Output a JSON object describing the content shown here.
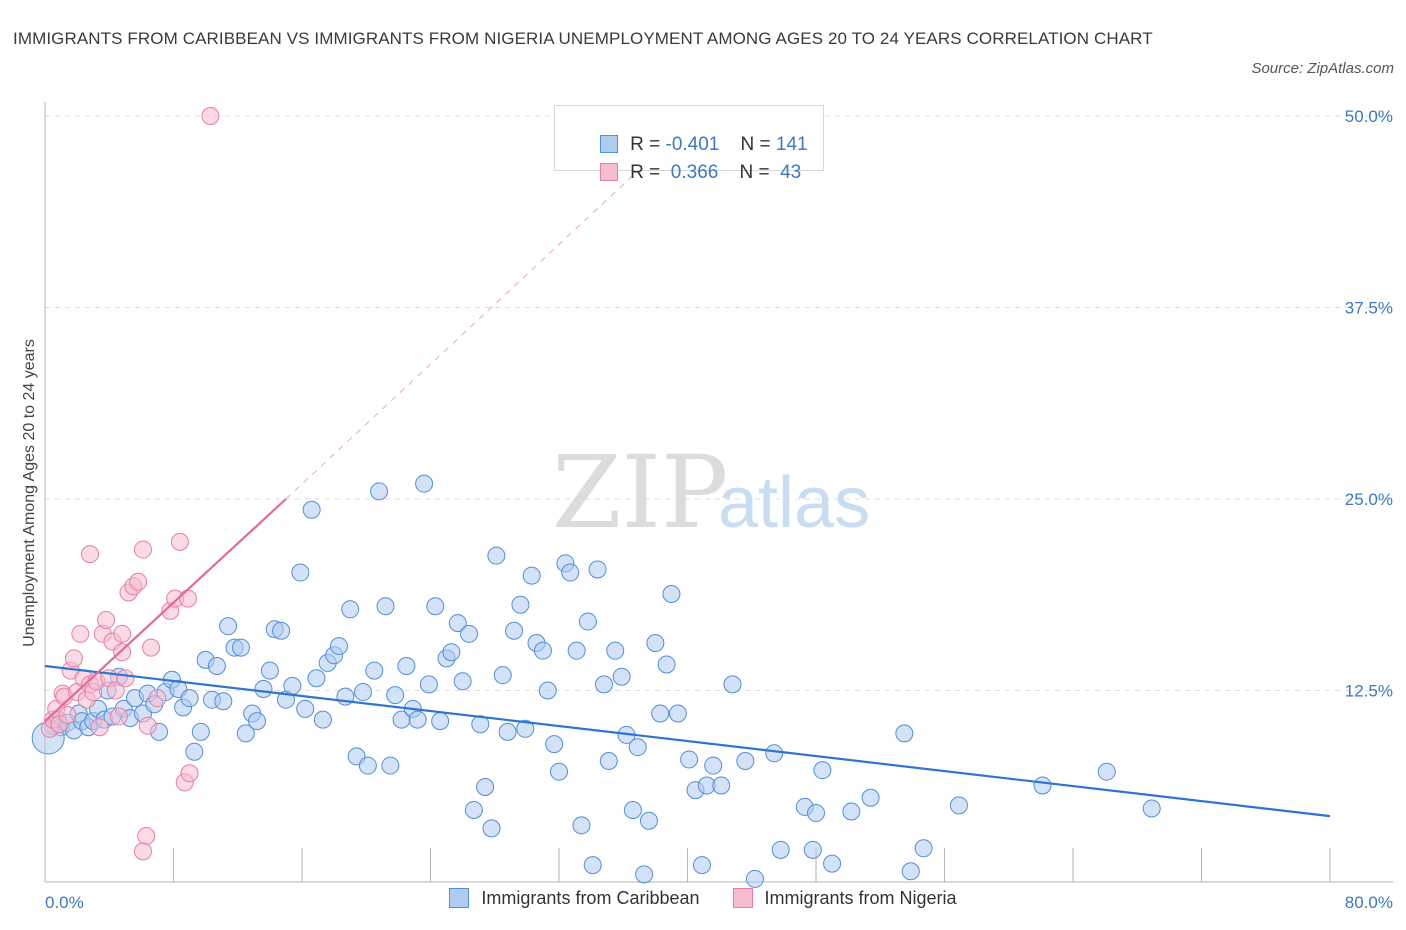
{
  "title": "IMMIGRANTS FROM CARIBBEAN VS IMMIGRANTS FROM NIGERIA UNEMPLOYMENT AMONG AGES 20 TO 24 YEARS CORRELATION CHART",
  "source": "Source: ZipAtlas.com",
  "watermark": {
    "zip": "ZIP",
    "atlas": "atlas"
  },
  "legend": {
    "rows": [
      {
        "r_label": "R = ",
        "r_value": "-0.401",
        "n_label": "N = ",
        "n_value": "141"
      },
      {
        "r_label": "R = ",
        "r_value": " 0.366",
        "n_label": "N = ",
        "n_value": " 43"
      }
    ]
  },
  "colors": {
    "caribbean_fill": "#aecbf0",
    "caribbean_stroke": "#4f8fdc",
    "caribbean_line": "#2f74d0",
    "nigeria_fill": "#f6bcd0",
    "nigeria_stroke": "#e77fa2",
    "nigeria_line": "#e46a92",
    "tick_label": "#3a78c8",
    "grid": "#dddddd"
  },
  "chart_data": {
    "type": "scatter",
    "title": "IMMIGRANTS FROM CARIBBEAN VS IMMIGRANTS FROM NIGERIA UNEMPLOYMENT AMONG AGES 20 TO 24 YEARS CORRELATION CHART",
    "xlabel": "",
    "ylabel": "Unemployment Among Ages 20 to 24 years",
    "xlim": [
      0,
      80
    ],
    "ylim": [
      0,
      50
    ],
    "x_tick_labels": [
      "0.0%",
      "80.0%"
    ],
    "y_ticks": [
      12.5,
      25.0,
      37.5,
      50.0
    ],
    "y_tick_labels": [
      "12.5%",
      "25.0%",
      "37.5%",
      "50.0%"
    ],
    "grid": true,
    "legend_position": "top-center",
    "series": [
      {
        "name": "Immigrants from Caribbean",
        "R": -0.401,
        "N": 141,
        "trend": {
          "x0": 0,
          "y0": 14.1,
          "x1": 80,
          "y1": 4.3
        },
        "points": [
          [
            0.5,
            10.2
          ],
          [
            0.8,
            10.6
          ],
          [
            1.0,
            10.1
          ],
          [
            1.4,
            10.4
          ],
          [
            1.8,
            9.9
          ],
          [
            2.1,
            11.0
          ],
          [
            2.3,
            10.5
          ],
          [
            2.7,
            10.1
          ],
          [
            3.0,
            10.5
          ],
          [
            3.3,
            11.3
          ],
          [
            3.7,
            10.6
          ],
          [
            3.9,
            12.5
          ],
          [
            4.2,
            10.8
          ],
          [
            4.6,
            13.4
          ],
          [
            4.9,
            11.3
          ],
          [
            5.3,
            10.7
          ],
          [
            5.6,
            12.0
          ],
          [
            6.1,
            11.0
          ],
          [
            6.4,
            12.3
          ],
          [
            6.8,
            11.6
          ],
          [
            7.1,
            9.8
          ],
          [
            7.5,
            12.4
          ],
          [
            7.9,
            13.2
          ],
          [
            8.3,
            12.6
          ],
          [
            8.6,
            11.4
          ],
          [
            9.0,
            12.0
          ],
          [
            9.3,
            8.5
          ],
          [
            9.7,
            9.8
          ],
          [
            10.0,
            14.5
          ],
          [
            10.4,
            11.9
          ],
          [
            10.7,
            14.1
          ],
          [
            11.1,
            11.8
          ],
          [
            11.4,
            16.7
          ],
          [
            11.8,
            15.3
          ],
          [
            12.2,
            15.3
          ],
          [
            12.5,
            9.7
          ],
          [
            12.9,
            11.0
          ],
          [
            13.2,
            10.5
          ],
          [
            13.6,
            12.6
          ],
          [
            14.0,
            13.8
          ],
          [
            14.3,
            16.5
          ],
          [
            14.7,
            16.4
          ],
          [
            15.0,
            11.9
          ],
          [
            15.4,
            12.8
          ],
          [
            15.9,
            20.2
          ],
          [
            16.2,
            11.3
          ],
          [
            16.6,
            24.3
          ],
          [
            16.9,
            13.3
          ],
          [
            17.3,
            10.6
          ],
          [
            17.6,
            14.3
          ],
          [
            18.0,
            14.8
          ],
          [
            18.3,
            15.4
          ],
          [
            18.7,
            12.1
          ],
          [
            19.0,
            17.8
          ],
          [
            19.4,
            8.2
          ],
          [
            19.8,
            12.4
          ],
          [
            20.1,
            7.6
          ],
          [
            20.5,
            13.8
          ],
          [
            20.8,
            25.5
          ],
          [
            21.2,
            18.0
          ],
          [
            21.5,
            7.6
          ],
          [
            21.8,
            12.2
          ],
          [
            22.2,
            10.6
          ],
          [
            22.5,
            14.1
          ],
          [
            22.9,
            11.3
          ],
          [
            23.2,
            10.6
          ],
          [
            23.6,
            26.0
          ],
          [
            23.9,
            12.9
          ],
          [
            24.3,
            18.0
          ],
          [
            24.6,
            10.5
          ],
          [
            25.0,
            14.6
          ],
          [
            25.3,
            15.0
          ],
          [
            25.7,
            16.9
          ],
          [
            26.0,
            13.1
          ],
          [
            26.4,
            16.2
          ],
          [
            26.7,
            4.7
          ],
          [
            27.1,
            10.3
          ],
          [
            27.4,
            6.2
          ],
          [
            27.8,
            3.5
          ],
          [
            28.1,
            21.3
          ],
          [
            28.5,
            13.5
          ],
          [
            28.8,
            9.8
          ],
          [
            29.2,
            16.4
          ],
          [
            29.6,
            18.1
          ],
          [
            29.9,
            10.0
          ],
          [
            30.3,
            20.0
          ],
          [
            30.6,
            15.6
          ],
          [
            31.0,
            15.1
          ],
          [
            31.3,
            12.5
          ],
          [
            31.7,
            9.0
          ],
          [
            32.0,
            7.2
          ],
          [
            32.4,
            20.8
          ],
          [
            32.7,
            20.2
          ],
          [
            33.1,
            15.1
          ],
          [
            33.4,
            3.7
          ],
          [
            33.8,
            17.0
          ],
          [
            34.1,
            1.1
          ],
          [
            34.4,
            20.4
          ],
          [
            34.8,
            12.9
          ],
          [
            35.1,
            7.9
          ],
          [
            35.5,
            15.1
          ],
          [
            35.9,
            13.4
          ],
          [
            36.2,
            9.6
          ],
          [
            36.6,
            4.7
          ],
          [
            36.9,
            8.8
          ],
          [
            37.3,
            0.5
          ],
          [
            37.6,
            4.0
          ],
          [
            38.0,
            15.6
          ],
          [
            38.3,
            11.0
          ],
          [
            38.7,
            14.2
          ],
          [
            39.0,
            18.8
          ],
          [
            39.4,
            11.0
          ],
          [
            40.1,
            8.0
          ],
          [
            40.5,
            6.0
          ],
          [
            40.9,
            1.1
          ],
          [
            41.2,
            6.3
          ],
          [
            41.6,
            7.6
          ],
          [
            42.1,
            6.3
          ],
          [
            42.8,
            12.9
          ],
          [
            43.6,
            7.9
          ],
          [
            44.2,
            0.2
          ],
          [
            45.4,
            8.4
          ],
          [
            45.8,
            2.1
          ],
          [
            47.3,
            4.9
          ],
          [
            47.8,
            2.1
          ],
          [
            48.0,
            4.5
          ],
          [
            48.4,
            7.3
          ],
          [
            49.0,
            1.2
          ],
          [
            50.2,
            4.6
          ],
          [
            51.4,
            5.5
          ],
          [
            53.5,
            9.7
          ],
          [
            53.9,
            0.7
          ],
          [
            54.7,
            2.2
          ],
          [
            56.9,
            5.0
          ],
          [
            62.1,
            6.3
          ],
          [
            66.1,
            7.2
          ],
          [
            68.9,
            4.8
          ],
          [
            0.2,
            9.4
          ]
        ]
      },
      {
        "name": "Immigrants from Nigeria",
        "R": 0.366,
        "N": 43,
        "trend": {
          "x0": 0,
          "y0": 10.5,
          "x1": 15.0,
          "y1": 25.0
        },
        "trend_dashed_to": {
          "x": 37.0,
          "y": 46.5
        },
        "points": [
          [
            0.3,
            10.0
          ],
          [
            0.5,
            10.6
          ],
          [
            0.7,
            11.3
          ],
          [
            0.9,
            10.3
          ],
          [
            1.1,
            12.3
          ],
          [
            1.2,
            12.1
          ],
          [
            1.4,
            10.9
          ],
          [
            1.6,
            13.8
          ],
          [
            1.8,
            14.6
          ],
          [
            2.0,
            12.4
          ],
          [
            2.2,
            16.2
          ],
          [
            2.4,
            13.3
          ],
          [
            2.6,
            11.9
          ],
          [
            2.8,
            12.9
          ],
          [
            3.0,
            12.4
          ],
          [
            3.2,
            13.1
          ],
          [
            3.4,
            10.1
          ],
          [
            3.6,
            16.2
          ],
          [
            3.8,
            17.1
          ],
          [
            4.0,
            13.3
          ],
          [
            4.2,
            15.7
          ],
          [
            4.4,
            12.5
          ],
          [
            4.6,
            10.8
          ],
          [
            4.8,
            16.2
          ],
          [
            5.0,
            13.3
          ],
          [
            5.2,
            18.9
          ],
          [
            5.5,
            19.3
          ],
          [
            5.8,
            19.6
          ],
          [
            6.1,
            21.7
          ],
          [
            6.4,
            10.2
          ],
          [
            6.6,
            15.3
          ],
          [
            7.0,
            12.0
          ],
          [
            7.8,
            17.7
          ],
          [
            8.1,
            18.5
          ],
          [
            8.4,
            22.2
          ],
          [
            8.7,
            6.5
          ],
          [
            9.0,
            7.1
          ],
          [
            8.9,
            18.5
          ],
          [
            6.3,
            3.0
          ],
          [
            6.1,
            2.0
          ],
          [
            10.3,
            50.0
          ],
          [
            2.8,
            21.4
          ],
          [
            4.8,
            15.0
          ]
        ]
      }
    ]
  },
  "x_axis": {
    "left_label": "0.0%",
    "right_label": "80.0%"
  },
  "y_axis": {
    "label": "Unemployment Among Ages 20 to 24 years"
  },
  "bottom_legend": {
    "caribbean": "Immigrants from Caribbean",
    "nigeria": "Immigrants from Nigeria"
  }
}
